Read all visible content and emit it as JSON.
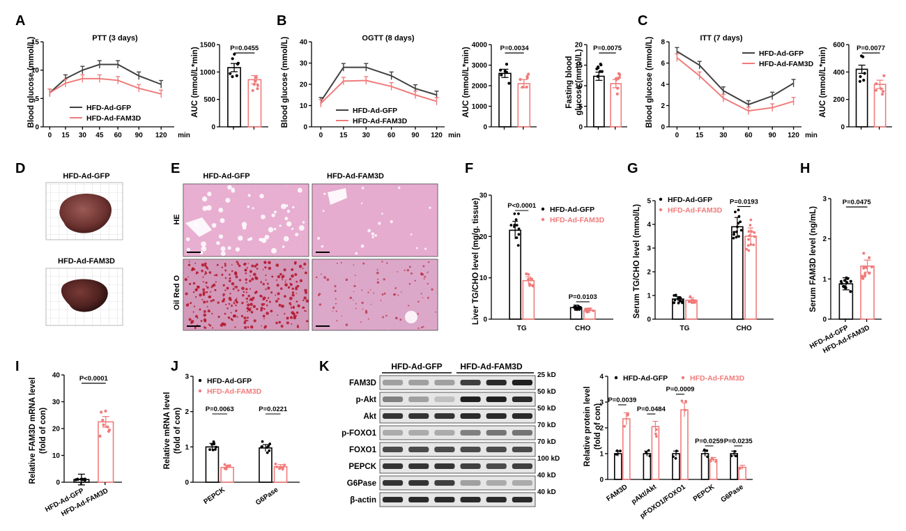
{
  "panels": [
    "A",
    "B",
    "C",
    "D",
    "E",
    "F",
    "G",
    "H",
    "I",
    "J",
    "K"
  ],
  "colors": {
    "gfp": "#404040",
    "fam": "#f07b7b",
    "axis": "#000000",
    "bg": "#ffffff"
  },
  "groups": {
    "gfp": "HFD-Ad-GFP",
    "fam": "HFD-Ad-FAM3D"
  },
  "labels": {
    "ptt_title": "PTT (3 days)",
    "ogtt_title": "OGTT (8 days)",
    "itt_title": "ITT (7 days)",
    "ylabel_glucose": "Blood glucose (mmol/L)",
    "ylabel_auc": "AUC (mmol/L*min)",
    "ylabel_fasting_1": "Fasting blood",
    "ylabel_fasting_2": "glucose (mmol/L)",
    "xunit": "min",
    "stain_he": "HE",
    "stain_oil": "Oil Red O",
    "ylabel_liver": "Liver TG/CHO level (mg/g. tissue)",
    "ylabel_serum": "Serum TG/CHO level (mmol/L)",
    "ylabel_serum_fam3d": "Serum FAM3D level (ng/mL)",
    "ylabel_mrna_1": "Relative FAM3D mRNA level",
    "ylabel_mrna_2": "(fold of con)",
    "ylabel_rel_mrna_1": "Relative mRNA level",
    "ylabel_rel_mrna_2": "(fold of con)",
    "ylabel_protein_1": "Relative protein level",
    "ylabel_protein_2": "(fold of con)"
  },
  "chart_data": [
    {
      "panel": "A",
      "type": "line",
      "title": "PTT (3 days)",
      "x": [
        0,
        15,
        30,
        45,
        60,
        90,
        120
      ],
      "xlabel": "min",
      "ylabel": "Blood glucose (mmol/L)",
      "ylim": [
        0,
        15
      ],
      "series": [
        {
          "name": "HFD-Ad-GFP",
          "values": [
            6,
            8.5,
            10,
            11,
            11,
            9,
            7.5
          ]
        },
        {
          "name": "HFD-Ad-FAM3D",
          "values": [
            6,
            7.7,
            8.5,
            8.5,
            8.2,
            6.8,
            5.8
          ]
        }
      ]
    },
    {
      "panel": "A",
      "type": "bar",
      "ylabel": "AUC (mmol/L*min)",
      "ylim": [
        0,
        1500
      ],
      "categories": [
        "HFD-Ad-GFP",
        "HFD-Ad-FAM3D"
      ],
      "values": [
        1080,
        860
      ],
      "p_value": "P=0.0455"
    },
    {
      "panel": "B",
      "type": "line",
      "title": "OGTT (8 days)",
      "x": [
        0,
        15,
        30,
        60,
        90,
        120
      ],
      "xlabel": "min",
      "ylabel": "Blood glucose (mmol/L)",
      "ylim": [
        0,
        40
      ],
      "series": [
        {
          "name": "HFD-Ad-GFP",
          "values": [
            12,
            28,
            28,
            24,
            18,
            15
          ]
        },
        {
          "name": "HFD-Ad-FAM3D",
          "values": [
            11,
            21.5,
            21.8,
            19,
            15,
            12
          ]
        }
      ]
    },
    {
      "panel": "B",
      "type": "bar",
      "ylabel": "AUC (mmol/L*min)",
      "ylim": [
        0,
        4000
      ],
      "categories": [
        "HFD-Ad-GFP",
        "HFD-Ad-FAM3D"
      ],
      "values": [
        2600,
        2100
      ],
      "p_value": "P=0.0034"
    },
    {
      "panel": "B",
      "type": "bar",
      "ylabel": "Fasting blood glucose (mmol/L)",
      "ylim": [
        0,
        20
      ],
      "categories": [
        "HFD-Ad-GFP",
        "HFD-Ad-FAM3D"
      ],
      "values": [
        12.3,
        10.5
      ],
      "p_value": "P=0.0075"
    },
    {
      "panel": "C",
      "type": "line",
      "title": "ITT (7 days)",
      "x": [
        0,
        15,
        30,
        60,
        90,
        120
      ],
      "xlabel": "min",
      "ylabel": "Blood glucose (mmol/L)",
      "ylim": [
        0,
        8
      ],
      "series": [
        {
          "name": "HFD-Ad-GFP",
          "values": [
            7.1,
            5.8,
            3.4,
            2.1,
            2.9,
            4.1
          ]
        },
        {
          "name": "HFD-Ad-FAM3D",
          "values": [
            6.5,
            4.8,
            2.7,
            1.5,
            1.8,
            2.4
          ]
        }
      ]
    },
    {
      "panel": "C",
      "type": "bar",
      "ylabel": "AUC (mmol/L*min)",
      "ylim": [
        0,
        600
      ],
      "categories": [
        "HFD-Ad-GFP",
        "HFD-Ad-FAM3D"
      ],
      "values": [
        420,
        310
      ],
      "p_value": "P=0.0077"
    },
    {
      "panel": "F",
      "type": "bar",
      "ylabel": "Liver TG/CHO level (mg/g. tissue)",
      "ylim": [
        0,
        30
      ],
      "categories": [
        "TG",
        "CHO"
      ],
      "series": [
        {
          "name": "HFD-Ad-GFP",
          "values": [
            21.5,
            2.8
          ]
        },
        {
          "name": "HFD-Ad-FAM3D",
          "values": [
            9.3,
            2.1
          ]
        }
      ],
      "p_values": [
        "P<0.0001",
        "P=0.0103"
      ]
    },
    {
      "panel": "G",
      "type": "bar",
      "ylabel": "Serum TG/CHO level (mmol/L)",
      "ylim": [
        0,
        5
      ],
      "categories": [
        "TG",
        "CHO"
      ],
      "series": [
        {
          "name": "HFD-Ad-GFP",
          "values": [
            0.85,
            3.9
          ]
        },
        {
          "name": "HFD-Ad-FAM3D",
          "values": [
            0.8,
            3.5
          ]
        }
      ],
      "p_values": [
        "",
        "P=0.0193"
      ]
    },
    {
      "panel": "H",
      "type": "bar",
      "ylabel": "Serum FAM3D level (ng/mL)",
      "ylim": [
        0,
        3
      ],
      "categories": [
        "HFD-Ad-GFP",
        "HFD-Ad-FAM3D"
      ],
      "values": [
        0.88,
        1.32
      ],
      "p_value": "P=0.0475"
    },
    {
      "panel": "I",
      "type": "bar",
      "ylabel": "Relative FAM3D mRNA level (fold of con)",
      "ylim": [
        0,
        40
      ],
      "categories": [
        "HFD-Ad-GFP",
        "HFD-Ad-FAM3D"
      ],
      "values": [
        1,
        22.5
      ],
      "p_value": "P<0.0001"
    },
    {
      "panel": "J",
      "type": "bar",
      "ylabel": "Relative mRNA level (fold of con)",
      "ylim": [
        0,
        3
      ],
      "categories": [
        "PEPCK",
        "G6Pase"
      ],
      "series": [
        {
          "name": "HFD-Ad-GFP",
          "values": [
            1.0,
            0.97
          ]
        },
        {
          "name": "HFD-Ad-FAM3D",
          "values": [
            0.42,
            0.44
          ]
        }
      ],
      "p_values": [
        "P=0.0063",
        "P=0.0221"
      ]
    },
    {
      "panel": "K",
      "type": "bar",
      "ylabel": "Relative protein level (fold of con)",
      "ylim": [
        0,
        4
      ],
      "categories": [
        "FAM3D",
        "pAkt/Akt",
        "pFOXO1/FOXO1",
        "PEPCK",
        "G6Pase"
      ],
      "series": [
        {
          "name": "HFD-Ad-GFP",
          "values": [
            1,
            1,
            1,
            1,
            1
          ]
        },
        {
          "name": "HFD-Ad-FAM3D",
          "values": [
            2.35,
            2.05,
            2.7,
            0.77,
            0.47
          ]
        }
      ],
      "p_values": [
        "P=0.0039",
        "P=0.0484",
        "P=0.0009",
        "P=0.0259",
        "P=0.0235"
      ]
    }
  ],
  "western": {
    "rows": [
      "FAM3D",
      "p-Akt",
      "Akt",
      "p-FOXO1",
      "FOXO1",
      "PEPCK",
      "G6Pase",
      "β-actin"
    ],
    "sizes": [
      "25 kD",
      "50 kD",
      "50 kD",
      "70 kD",
      "70 kD",
      "100 kD",
      "40 kD",
      "40 kD"
    ]
  }
}
